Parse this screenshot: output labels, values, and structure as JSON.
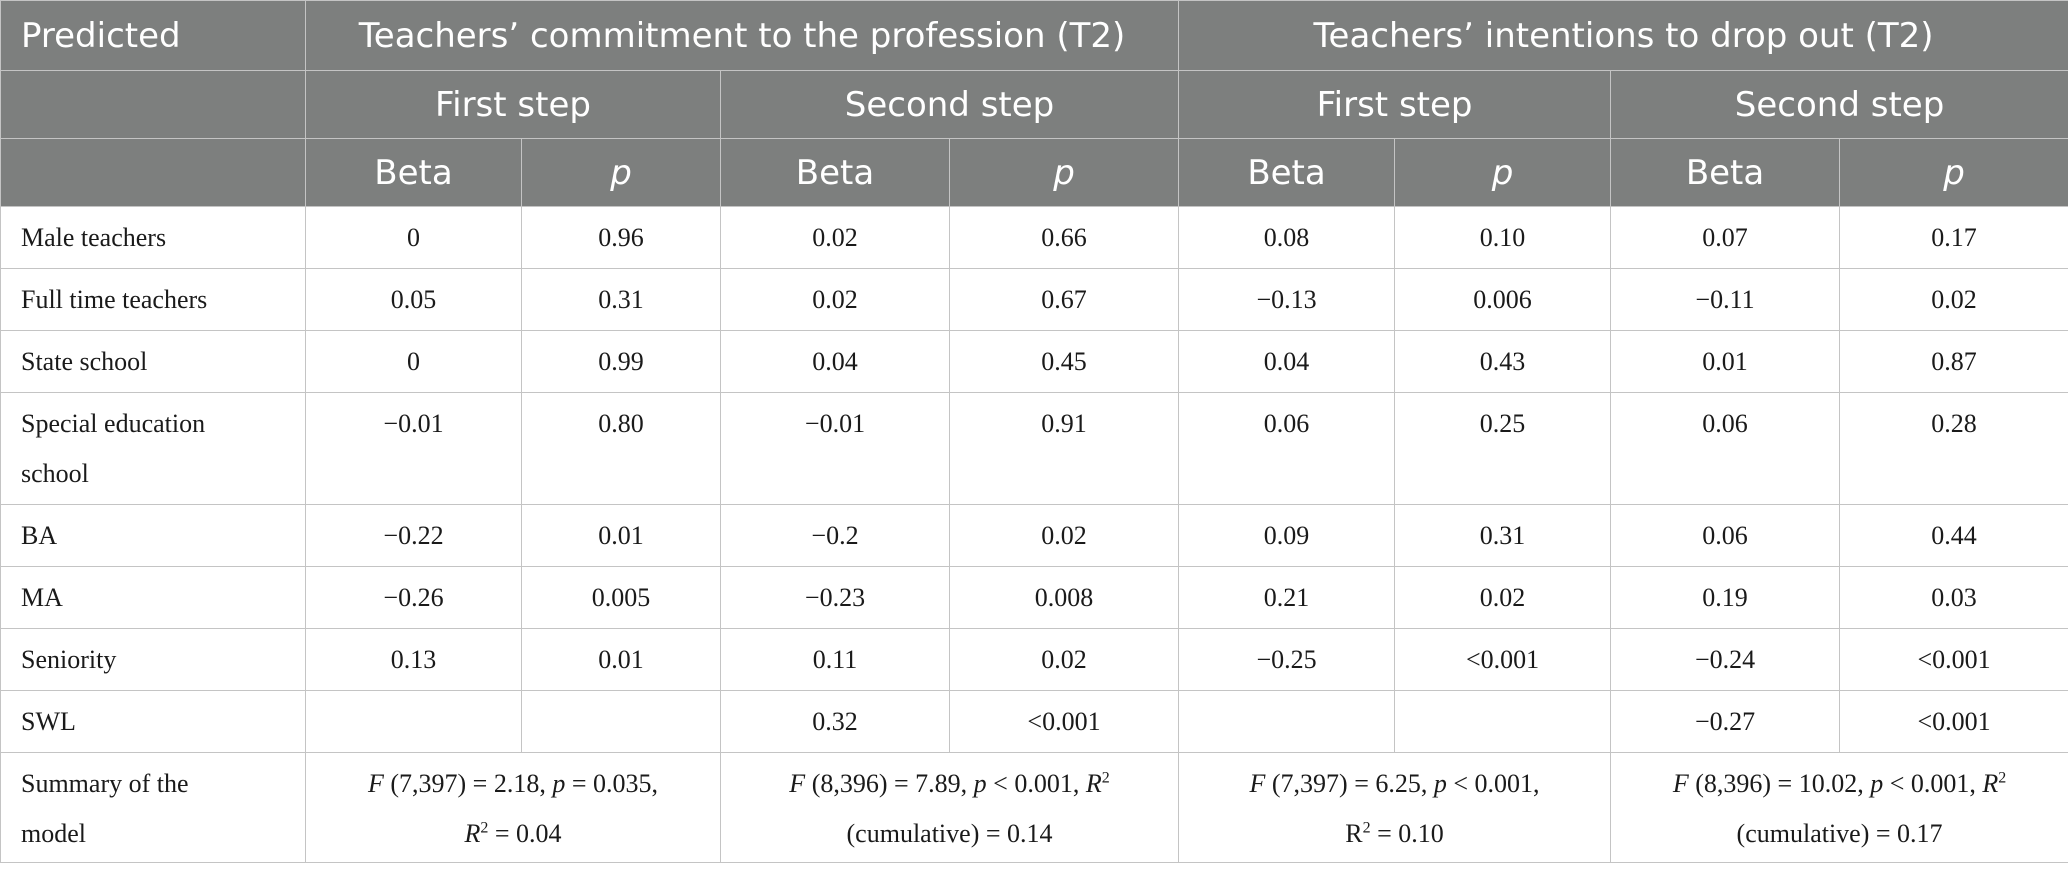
{
  "header": {
    "predicted": "Predicted",
    "group1": "Teachers’ commitment to the profession (T2)",
    "group2": "Teachers’ intentions to drop out (T2)",
    "steps": [
      "First step",
      "Second step",
      "First step",
      "Second step"
    ],
    "cols": [
      "Beta",
      "p",
      "Beta",
      "p",
      "Beta",
      "p",
      "Beta",
      "p"
    ]
  },
  "rows": [
    {
      "label": "Male teachers",
      "values": [
        "0",
        "0.96",
        "0.02",
        "0.66",
        "0.08",
        "0.10",
        "0.07",
        "0.17"
      ]
    },
    {
      "label": "Full time teachers",
      "values": [
        "0.05",
        "0.31",
        "0.02",
        "0.67",
        "−0.13",
        "0.006",
        "−0.11",
        "0.02"
      ]
    },
    {
      "label": "State school",
      "values": [
        "0",
        "0.99",
        "0.04",
        "0.45",
        "0.04",
        "0.43",
        "0.01",
        "0.87"
      ]
    },
    {
      "label_line1": "Special education",
      "label_line2": "school",
      "values": [
        "−0.01",
        "0.80",
        "−0.01",
        "0.91",
        "0.06",
        "0.25",
        "0.06",
        "0.28"
      ]
    },
    {
      "label": "BA",
      "values": [
        "−0.22",
        "0.01",
        "−0.2",
        "0.02",
        "0.09",
        "0.31",
        "0.06",
        "0.44"
      ]
    },
    {
      "label": "MA",
      "values": [
        "−0.26",
        "0.005",
        "−0.23",
        "0.008",
        "0.21",
        "0.02",
        "0.19",
        "0.03"
      ]
    },
    {
      "label": "Seniority",
      "values": [
        "0.13",
        "0.01",
        "0.11",
        "0.02",
        "−0.25",
        "<0.001",
        "−0.24",
        "<0.001"
      ]
    },
    {
      "label": "SWL",
      "values": [
        "",
        "",
        "0.32",
        "<0.001",
        "",
        "",
        "−0.27",
        "<0.001"
      ]
    }
  ],
  "summary": {
    "label_line1": "Summary of the",
    "label_line2": "model",
    "m1": {
      "f": "F",
      "line1_rest": " (7,397) = 2.18, ",
      "p": "p",
      "line1_end": " = 0.035,",
      "r": "R",
      "sup": "2",
      "line2_rest": " = 0.04"
    },
    "m2": {
      "f": "F",
      "line1_rest": " (8,396) = 7.89, ",
      "p": "p",
      "line1_mid": " < 0.001, ",
      "r": "R",
      "sup": "2",
      "line2": "(cumulative) = 0.14"
    },
    "m3": {
      "f": "F",
      "line1_rest": " (7,397) = 6.25, ",
      "p": "p",
      "line1_end": " < 0.001,",
      "line2_pre": "R",
      "sup": "2",
      "line2_rest": " = 0.10"
    },
    "m4": {
      "f": "F",
      "line1_rest": " (8,396) = 10.02, ",
      "p": "p",
      "line1_mid": " < 0.001, ",
      "r": "R",
      "sup": "2",
      "line2": "(cumulative) = 0.17"
    }
  }
}
